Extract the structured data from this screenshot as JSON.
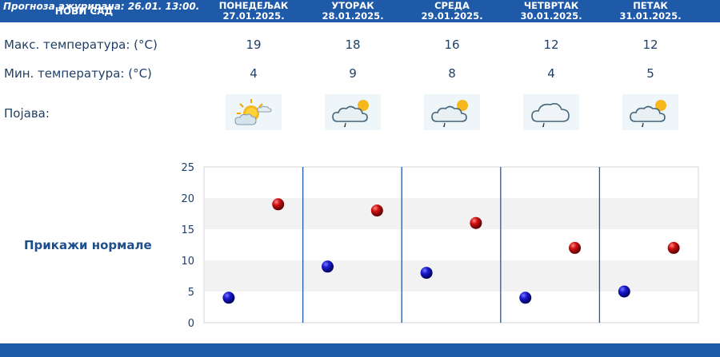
{
  "header": {
    "city": "НОВИ САД"
  },
  "days": [
    {
      "name": "ПОНЕДЕЉАК",
      "date": "27.01.2025.",
      "max": "19",
      "min": "4",
      "icon": "sun-cloud-icon"
    },
    {
      "name": "УТОРАК",
      "date": "28.01.2025.",
      "max": "18",
      "min": "9",
      "icon": "cloud-sun-rain-icon"
    },
    {
      "name": "СРЕДА",
      "date": "29.01.2025.",
      "max": "16",
      "min": "8",
      "icon": "cloud-sun-rain-icon"
    },
    {
      "name": "ЧЕТВРТАК",
      "date": "30.01.2025.",
      "max": "12",
      "min": "4",
      "icon": "cloud-rain-icon"
    },
    {
      "name": "ПЕТАК",
      "date": "31.01.2025.",
      "max": "12",
      "min": "5",
      "icon": "cloud-sun-rain-icon"
    }
  ],
  "labels": {
    "max_temp": "Макс. температура: (°C)",
    "min_temp": "Мин. температура: (°C)",
    "phenomenon": "Појава:"
  },
  "normals_button": "Прикажи нормале",
  "footer": "Прогноза ажурирана:  26.01.  13:00.",
  "chart_data": {
    "type": "scatter",
    "ylim": [
      0,
      25
    ],
    "yticks": [
      "0",
      "5",
      "10",
      "15",
      "20",
      "25"
    ],
    "series": [
      {
        "values": [
          4,
          9,
          8,
          4,
          5
        ],
        "color": "#1010c0"
      },
      {
        "values": [
          19,
          18,
          16,
          12,
          12
        ],
        "color": "#c01010"
      }
    ],
    "grid": true
  },
  "colors": {
    "header": "#1e5aa8",
    "text": "#1f3f66",
    "band": "#f2f2f2"
  }
}
